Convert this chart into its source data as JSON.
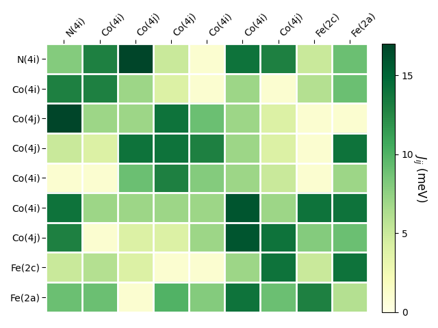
{
  "row_labels": [
    "N(4i)",
    "Co(4i)",
    "Co(4j)",
    "Co(4j)",
    "Co(4i)",
    "Co(4i)",
    "Co(4j)",
    "Fe(2c)",
    "Fe(2a)"
  ],
  "col_labels": [
    "N(4i)",
    "Co(4i)",
    "Co(4j)",
    "Co(4j)",
    "Co(4i)",
    "Co(4i)",
    "Co(4j)",
    "Fe(2c)",
    "Fe(2a)"
  ],
  "matrix": [
    [
      8,
      13,
      17,
      5,
      1,
      14,
      13,
      5,
      9
    ],
    [
      13,
      13,
      7,
      4,
      1,
      7,
      1,
      6,
      9
    ],
    [
      17,
      7,
      7,
      14,
      9,
      7,
      4,
      1,
      1
    ],
    [
      5,
      4,
      14,
      14,
      13,
      7,
      4,
      1,
      14
    ],
    [
      1,
      1,
      9,
      13,
      8,
      7,
      5,
      1,
      7
    ],
    [
      14,
      7,
      7,
      7,
      7,
      16,
      7,
      14,
      14
    ],
    [
      13,
      1,
      4,
      4,
      7,
      16,
      14,
      8,
      9
    ],
    [
      5,
      6,
      4,
      1,
      1,
      7,
      14,
      5,
      14
    ],
    [
      9,
      9,
      1,
      10,
      8,
      14,
      9,
      13,
      6
    ]
  ],
  "vmin": 0,
  "vmax": 17,
  "cbar_label": "$J_{ij}$ (meV)",
  "cbar_ticks": [
    0,
    5,
    10,
    15
  ],
  "colormap": "YlGn",
  "figsize": [
    6.4,
    4.8
  ],
  "dpi": 100,
  "cell_linewidth": 2.0,
  "cell_linecolor": "white",
  "tick_labelsize": 10,
  "cbar_labelsize": 12,
  "cbar_labelpad": 15
}
